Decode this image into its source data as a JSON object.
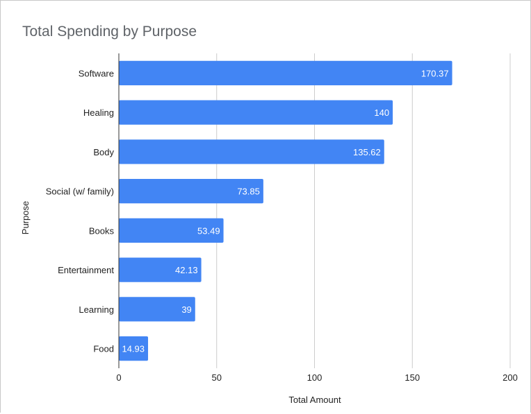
{
  "chart_data": {
    "type": "bar",
    "orientation": "horizontal",
    "title": "Total Spending by Purpose",
    "xlabel": "Total Amount",
    "ylabel": "Purpose",
    "categories": [
      "Software",
      "Healing",
      "Body",
      "Social (w/ family)",
      "Books",
      "Entertainment",
      "Learning",
      "Food"
    ],
    "values": [
      170.37,
      140,
      135.62,
      73.85,
      53.49,
      42.13,
      39,
      14.93
    ],
    "value_labels": [
      "170.37",
      "140",
      "135.62",
      "73.85",
      "53.49",
      "42.13",
      "39",
      "14.93"
    ],
    "xlim": [
      0,
      200
    ],
    "x_ticks": [
      0,
      50,
      100,
      150,
      200
    ],
    "x_tick_labels": [
      "0",
      "50",
      "100",
      "150",
      "200"
    ],
    "grid": "vertical",
    "legend": "none",
    "bar_color": "#4285f4"
  }
}
